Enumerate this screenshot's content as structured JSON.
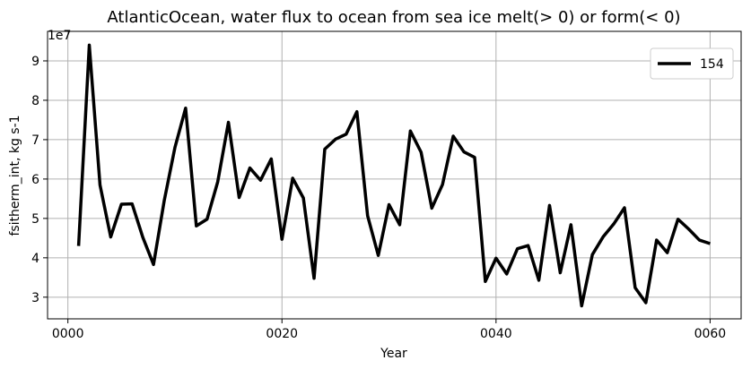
{
  "chart_data": {
    "type": "line",
    "title": "AtlanticOcean, water flux to ocean from sea ice melt(> 0) or form(< 0)",
    "xlabel": "Year",
    "ylabel": "fsitherm_int, kg s-1",
    "y_scale_label": "1e7",
    "xlim": [
      -1.9,
      62.9
    ],
    "ylim": [
      2.45,
      9.75
    ],
    "x_ticks": [
      0,
      20,
      40,
      60
    ],
    "x_tick_labels": [
      "0000",
      "0020",
      "0040",
      "0060"
    ],
    "y_ticks": [
      3,
      4,
      5,
      6,
      7,
      8,
      9
    ],
    "y_tick_labels": [
      "3",
      "4",
      "5",
      "6",
      "7",
      "8",
      "9"
    ],
    "grid": true,
    "legend_position": "top-right",
    "series": [
      {
        "name": "154",
        "color": "#000000",
        "x": [
          1,
          2,
          3,
          4,
          5,
          6,
          7,
          8,
          9,
          10,
          11,
          12,
          13,
          14,
          15,
          16,
          17,
          18,
          19,
          20,
          21,
          22,
          23,
          24,
          25,
          26,
          27,
          28,
          29,
          30,
          31,
          32,
          33,
          34,
          35,
          36,
          37,
          38,
          39,
          40,
          41,
          42,
          43,
          44,
          45,
          46,
          47,
          48,
          49,
          50,
          51,
          52,
          53,
          54,
          55,
          56,
          57,
          58,
          59,
          60
        ],
        "values": [
          4.3,
          9.4,
          5.85,
          4.53,
          5.36,
          5.37,
          4.52,
          3.83,
          5.45,
          6.8,
          7.8,
          4.81,
          4.98,
          5.93,
          7.44,
          5.53,
          6.28,
          5.97,
          6.51,
          4.47,
          6.02,
          5.52,
          3.48,
          6.76,
          7.01,
          7.14,
          7.71,
          5.07,
          4.06,
          5.35,
          4.84,
          7.22,
          6.68,
          5.26,
          5.86,
          7.09,
          6.69,
          6.55,
          3.4,
          3.99,
          3.59,
          4.23,
          4.31,
          3.43,
          5.33,
          3.62,
          4.84,
          2.78,
          4.08,
          4.53,
          4.86,
          5.27,
          3.24,
          2.86,
          4.45,
          4.13,
          4.98,
          4.73,
          4.45,
          4.36
        ]
      }
    ]
  }
}
